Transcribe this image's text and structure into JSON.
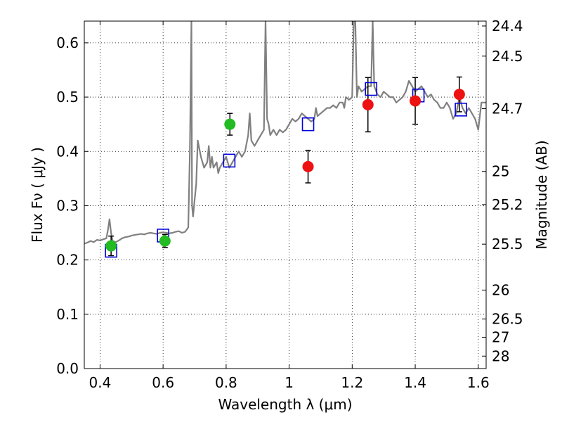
{
  "chart_data": {
    "type": "scatter",
    "title": "",
    "xlabel": "Wavelength  λ (μm)",
    "ylabel": "Flux  Fν  ( μJy )",
    "ylabel_right": "Magnitude (AB)",
    "xlim": [
      0.35,
      1.625
    ],
    "ylim": [
      0.0,
      0.64
    ],
    "grid": true,
    "x_ticks": [
      0.4,
      0.6,
      0.8,
      1.0,
      1.2,
      1.4,
      1.6
    ],
    "x_tick_labels": [
      "0.4",
      "0.6",
      "0.8",
      "1",
      "1.2",
      "1.4",
      "1.6"
    ],
    "y_ticks": [
      0.0,
      0.1,
      0.2,
      0.3,
      0.4,
      0.5,
      0.6
    ],
    "y_tick_labels": [
      "0.0",
      "0.1",
      "0.2",
      "0.3",
      "0.4",
      "0.5",
      "0.6"
    ],
    "right_ticks": [
      {
        "label": "24.4",
        "mag": 24.4
      },
      {
        "label": "24.5",
        "mag": 24.5
      },
      {
        "label": "24.7",
        "mag": 24.7
      },
      {
        "label": "25",
        "mag": 25.0
      },
      {
        "label": "25.2",
        "mag": 25.2
      },
      {
        "label": "25.5",
        "mag": 25.5
      },
      {
        "label": "26",
        "mag": 26.0
      },
      {
        "label": "26.5",
        "mag": 26.5
      },
      {
        "label": "27",
        "mag": 27.0
      },
      {
        "label": "28",
        "mag": 28.0
      }
    ],
    "series": [
      {
        "name": "model spectrum",
        "kind": "line",
        "color": "#808080",
        "x": [
          0.35,
          0.36,
          0.37,
          0.38,
          0.39,
          0.4,
          0.41,
          0.42,
          0.425,
          0.43,
          0.435,
          0.44,
          0.45,
          0.46,
          0.47,
          0.48,
          0.49,
          0.5,
          0.51,
          0.52,
          0.53,
          0.54,
          0.55,
          0.56,
          0.57,
          0.58,
          0.59,
          0.6,
          0.61,
          0.62,
          0.63,
          0.64,
          0.65,
          0.66,
          0.67,
          0.68,
          0.685,
          0.69,
          0.692,
          0.695,
          0.7,
          0.705,
          0.71,
          0.72,
          0.73,
          0.74,
          0.745,
          0.75,
          0.755,
          0.76,
          0.77,
          0.775,
          0.78,
          0.79,
          0.8,
          0.81,
          0.82,
          0.83,
          0.84,
          0.85,
          0.86,
          0.87,
          0.875,
          0.88,
          0.89,
          0.9,
          0.91,
          0.92,
          0.925,
          0.93,
          0.935,
          0.94,
          0.95,
          0.96,
          0.97,
          0.98,
          0.99,
          1.0,
          1.01,
          1.02,
          1.03,
          1.04,
          1.05,
          1.06,
          1.07,
          1.08,
          1.085,
          1.09,
          1.1,
          1.11,
          1.12,
          1.13,
          1.14,
          1.15,
          1.16,
          1.17,
          1.175,
          1.18,
          1.19,
          1.2,
          1.205,
          1.21,
          1.215,
          1.22,
          1.23,
          1.24,
          1.25,
          1.26,
          1.265,
          1.27,
          1.28,
          1.29,
          1.3,
          1.31,
          1.32,
          1.33,
          1.34,
          1.35,
          1.36,
          1.37,
          1.38,
          1.39,
          1.4,
          1.41,
          1.42,
          1.43,
          1.44,
          1.45,
          1.46,
          1.47,
          1.48,
          1.49,
          1.5,
          1.51,
          1.52,
          1.53,
          1.54,
          1.55,
          1.56,
          1.57,
          1.58,
          1.59,
          1.6,
          1.61,
          1.62,
          1.625
        ],
        "y": [
          0.23,
          0.232,
          0.235,
          0.233,
          0.237,
          0.236,
          0.238,
          0.24,
          0.255,
          0.275,
          0.25,
          0.235,
          0.233,
          0.236,
          0.24,
          0.242,
          0.243,
          0.245,
          0.246,
          0.247,
          0.248,
          0.247,
          0.249,
          0.25,
          0.249,
          0.248,
          0.25,
          0.251,
          0.25,
          0.249,
          0.25,
          0.252,
          0.253,
          0.25,
          0.252,
          0.26,
          0.4,
          0.64,
          0.3,
          0.28,
          0.31,
          0.34,
          0.42,
          0.39,
          0.37,
          0.38,
          0.41,
          0.37,
          0.39,
          0.37,
          0.38,
          0.36,
          0.37,
          0.38,
          0.39,
          0.37,
          0.38,
          0.39,
          0.4,
          0.39,
          0.4,
          0.43,
          0.47,
          0.42,
          0.41,
          0.42,
          0.43,
          0.44,
          0.64,
          0.46,
          0.45,
          0.43,
          0.44,
          0.43,
          0.44,
          0.435,
          0.44,
          0.45,
          0.46,
          0.455,
          0.46,
          0.47,
          0.465,
          0.46,
          0.455,
          0.46,
          0.48,
          0.465,
          0.47,
          0.475,
          0.48,
          0.48,
          0.485,
          0.48,
          0.49,
          0.49,
          0.48,
          0.5,
          0.495,
          0.5,
          0.64,
          0.64,
          0.5,
          0.52,
          0.51,
          0.515,
          0.52,
          0.52,
          0.64,
          0.52,
          0.505,
          0.5,
          0.51,
          0.505,
          0.5,
          0.5,
          0.49,
          0.495,
          0.5,
          0.51,
          0.53,
          0.52,
          0.51,
          0.515,
          0.52,
          0.51,
          0.5,
          0.505,
          0.495,
          0.49,
          0.48,
          0.48,
          0.49,
          0.48,
          0.46,
          0.47,
          0.5,
          0.48,
          0.47,
          0.48,
          0.47,
          0.46,
          0.44,
          0.49,
          0.49,
          0.49
        ]
      },
      {
        "name": "green photometry",
        "kind": "points",
        "color": "#22bb22",
        "x": [
          0.435,
          0.606,
          0.812
        ],
        "y": [
          0.226,
          0.235,
          0.45
        ],
        "yerr": [
          0.018,
          0.012,
          0.02
        ]
      },
      {
        "name": "red photometry",
        "kind": "points",
        "color": "#ee1111",
        "x": [
          1.06,
          1.25,
          1.4,
          1.54
        ],
        "y": [
          0.372,
          0.486,
          0.493,
          0.505
        ],
        "yerr": [
          0.03,
          0.05,
          0.043,
          0.032
        ]
      },
      {
        "name": "model band fluxes",
        "kind": "squares",
        "color": "#0000dd",
        "x": [
          0.435,
          0.6,
          0.81,
          1.06,
          1.26,
          1.41,
          1.545
        ],
        "y": [
          0.217,
          0.245,
          0.383,
          0.45,
          0.515,
          0.503,
          0.477
        ]
      }
    ]
  }
}
